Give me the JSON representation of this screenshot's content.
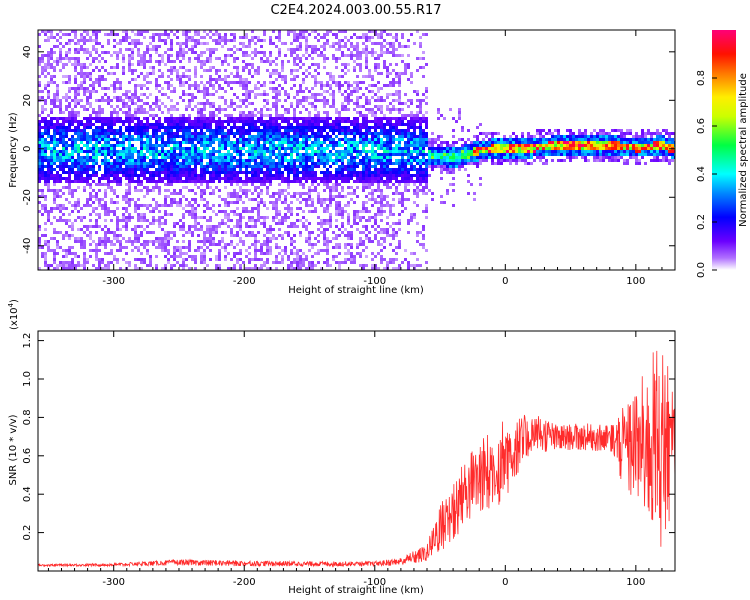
{
  "title": "C2E4.2024.003.00.55.R17",
  "chart_data": [
    {
      "type": "heatmap",
      "xlabel": "Height of straight line (km)",
      "ylabel": "Frequency (Hz)",
      "xlim": [
        -358,
        130
      ],
      "ylim": [
        -50,
        49
      ],
      "x_ticks": [
        -300,
        -200,
        -100,
        0,
        100
      ],
      "y_ticks": [
        -40,
        -20,
        0,
        20,
        40
      ],
      "grid": false,
      "colorbar": {
        "label": "Normalized spectral amplitude",
        "range": [
          0.0,
          1.0
        ],
        "ticks": [
          0.0,
          0.2,
          0.4,
          0.6,
          0.8
        ],
        "tick_labels": [
          "0.0",
          "0.2",
          "0.4",
          "0.6",
          "0.8"
        ],
        "colormap": [
          "#ffffff",
          "#9933ff",
          "#3300ff",
          "#0000ff",
          "#00ffff",
          "#00ff00",
          "#ffff00",
          "#ff6600",
          "#ff0000",
          "#ff0066"
        ]
      },
      "description_values": {
        "noise_region_end_km": -60,
        "signal_band_center_hz": [
          [
            -60,
            -2
          ],
          [
            -40,
            -3
          ],
          [
            -20,
            0
          ],
          [
            0,
            1
          ],
          [
            20,
            1
          ],
          [
            40,
            2
          ],
          [
            60,
            2
          ],
          [
            80,
            2
          ],
          [
            100,
            1
          ],
          [
            120,
            2
          ],
          [
            130,
            0
          ]
        ],
        "noise_band_halfwidth_hz": 10,
        "signal_band_halfwidth_hz": 3
      },
      "colors": {
        "strong": "#ff0033",
        "mid": "#00ff88",
        "weak": "#5500ff",
        "faint": "#d4b8ff"
      }
    },
    {
      "type": "line",
      "xlabel": "Height of straight line (km)",
      "ylabel": "SNR (10 * v/v)",
      "y_scale_label": "(x10",
      "y_scale_exp": "4",
      "xlim": [
        -358,
        130
      ],
      "ylim": [
        0,
        12500
      ],
      "x_ticks": [
        -300,
        -200,
        -100,
        0,
        100
      ],
      "y_ticks": [
        2000,
        4000,
        6000,
        8000,
        10000,
        12000
      ],
      "y_tick_labels": [
        "0.2",
        "0.4",
        "0.6",
        "0.8",
        "1.0",
        "1.2"
      ],
      "grid": false,
      "series": [
        {
          "color": "#ff2b2b",
          "envelope": [
            [
              -358,
              250,
              350
            ],
            [
              -300,
              250,
              400
            ],
            [
              -250,
              300,
              600
            ],
            [
              -200,
              250,
              550
            ],
            [
              -150,
              250,
              500
            ],
            [
              -100,
              250,
              500
            ],
            [
              -80,
              300,
              700
            ],
            [
              -60,
              500,
              1400
            ],
            [
              -50,
              1000,
              3600
            ],
            [
              -40,
              1500,
              4800
            ],
            [
              -30,
              2500,
              6000
            ],
            [
              -20,
              3000,
              6800
            ],
            [
              -10,
              3000,
              7400
            ],
            [
              0,
              3800,
              8200
            ],
            [
              10,
              5000,
              8000
            ],
            [
              20,
              6000,
              8300
            ],
            [
              30,
              6200,
              8000
            ],
            [
              40,
              6300,
              7600
            ],
            [
              60,
              6300,
              7700
            ],
            [
              80,
              6200,
              7600
            ],
            [
              90,
              4500,
              8500
            ],
            [
              100,
              3500,
              9400
            ],
            [
              110,
              2500,
              11000
            ],
            [
              120,
              1000,
              12400
            ],
            [
              125,
              2500,
              10500
            ],
            [
              130,
              3500,
              9000
            ]
          ]
        }
      ]
    }
  ]
}
